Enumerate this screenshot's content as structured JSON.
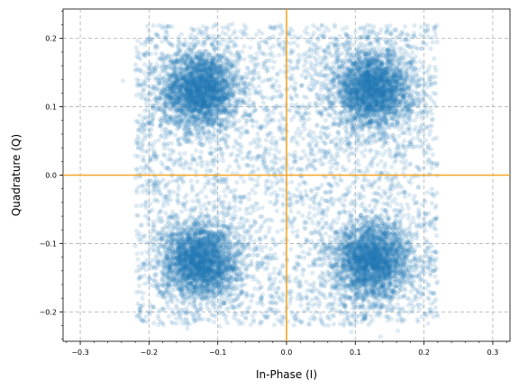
{
  "chart_data": {
    "type": "scatter",
    "title": "",
    "xlabel": "In-Phase (I)",
    "ylabel": "Quadrature (Q)",
    "xlim": [
      -0.325,
      0.325
    ],
    "ylim": [
      -0.243,
      0.243
    ],
    "x_ticks": [
      -0.3,
      -0.2,
      -0.1,
      0.0,
      0.1,
      0.2,
      0.3
    ],
    "x_tick_labels": [
      "−0.3",
      "−0.2",
      "−0.1",
      "0.0",
      "0.1",
      "0.2",
      "0.3"
    ],
    "y_ticks": [
      -0.2,
      -0.1,
      0.0,
      0.1,
      0.2
    ],
    "y_tick_labels": [
      "−0.2",
      "−0.1",
      "0.0",
      "0.1",
      "0.2"
    ],
    "grid": true,
    "reference_lines": {
      "x": 0,
      "y": 0,
      "color": "#f5a623"
    },
    "point_color": "#1f77b4",
    "point_alpha": 0.15,
    "series": [
      {
        "clusters": [
          {
            "center": [
              -0.125,
              0.125
            ],
            "points": 2500
          },
          {
            "center": [
              0.125,
              0.125
            ],
            "points": 2500
          },
          {
            "center": [
              -0.125,
              -0.125
            ],
            "points": 2500
          },
          {
            "center": [
              0.125,
              -0.125
            ],
            "points": 2500
          }
        ],
        "diffuse_points": 4000,
        "diffuse_range": [
          -0.22,
          0.22
        ]
      }
    ]
  }
}
